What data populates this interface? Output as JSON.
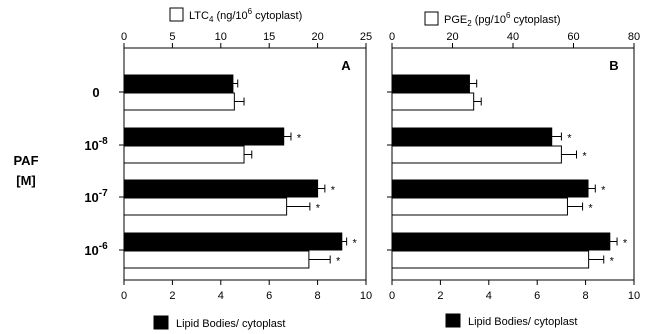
{
  "chart_data": {
    "type": "bar",
    "ylabel_lines": [
      "PAF",
      "[M]"
    ],
    "categories": [
      {
        "base": "0",
        "exp": ""
      },
      {
        "base": "10",
        "exp": "-8"
      },
      {
        "base": "10",
        "exp": "-7"
      },
      {
        "base": "10",
        "exp": "-6"
      }
    ],
    "panels": [
      {
        "letter": "A",
        "top_axis": {
          "min": 0,
          "max": 25,
          "ticks": [
            "0",
            "5",
            "10",
            "15",
            "20",
            "25"
          ]
        },
        "bottom_axis": {
          "min": 0,
          "max": 10,
          "ticks": [
            "0",
            "2",
            "4",
            "6",
            "8",
            "10"
          ]
        },
        "top_legend": {
          "pre": "LTC",
          "sub": "4",
          "mid": " (ng/10",
          "sup": "6",
          "post": " cytoplast)"
        },
        "bottom_legend": "Lipid Bodies/ cytoplast",
        "series": [
          {
            "legend": "bottom",
            "fill": "#000000",
            "values": [
              4.5,
              6.6,
              8.0,
              9.0
            ],
            "errors": [
              0.2,
              0.3,
              0.3,
              0.2
            ],
            "marked": [
              false,
              true,
              true,
              true
            ]
          },
          {
            "legend": "top",
            "fill": "#ffffff",
            "values": [
              11.4,
              12.4,
              16.8,
              19.1
            ],
            "errors": [
              1.0,
              0.8,
              2.4,
              2.2
            ],
            "marked": [
              false,
              false,
              true,
              true
            ]
          }
        ]
      },
      {
        "letter": "B",
        "top_axis": {
          "min": 0,
          "max": 80,
          "ticks": [
            "0",
            "20",
            "40",
            "60",
            "80"
          ]
        },
        "bottom_axis": {
          "min": 0,
          "max": 10,
          "ticks": [
            "0",
            "2",
            "4",
            "6",
            "8",
            "10"
          ]
        },
        "top_legend": {
          "pre": "PGE",
          "sub": "2",
          "mid": " (pg/10",
          "sup": "6",
          "post": " cytoplast)"
        },
        "bottom_legend": "Lipid Bodies/ cytoplast",
        "series": [
          {
            "legend": "bottom",
            "fill": "#000000",
            "values": [
              3.2,
              6.6,
              8.1,
              9.0
            ],
            "errors": [
              0.3,
              0.4,
              0.3,
              0.3
            ],
            "marked": [
              false,
              true,
              true,
              true
            ]
          },
          {
            "legend": "top",
            "fill": "#ffffff",
            "values": [
              27.0,
              56.0,
              58.0,
              65.0
            ],
            "errors": [
              2.5,
              5.0,
              5.0,
              5.0
            ],
            "marked": [
              false,
              true,
              true,
              true
            ]
          }
        ]
      }
    ]
  }
}
